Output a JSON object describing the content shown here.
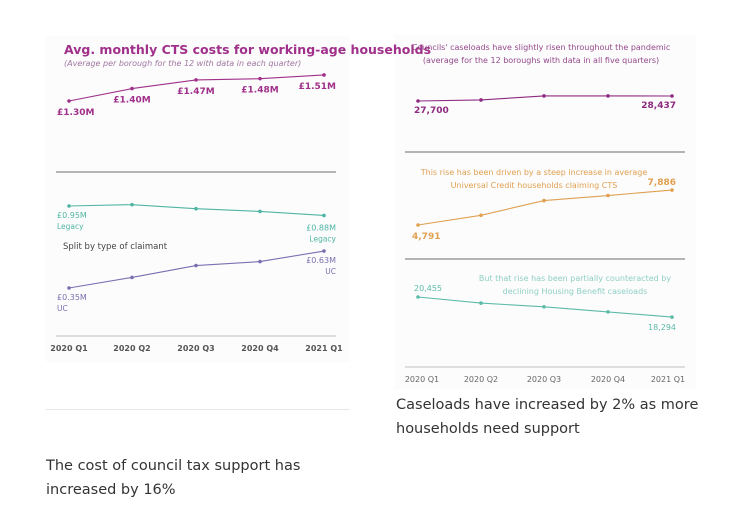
{
  "chart_data": [
    {
      "type": "line",
      "title": "Avg. monthly CTS costs for working-age households",
      "subtitle": "(Average per borough for the 12 with data in each quarter)",
      "annotation": "Split by type of claimant",
      "categories": [
        "2020 Q1",
        "2020 Q2",
        "2020 Q3",
        "2020 Q4",
        "2021 Q1"
      ],
      "series": [
        {
          "key": "total",
          "values": [
            1.3,
            1.4,
            1.47,
            1.48,
            1.51
          ],
          "labels": [
            "£1.30M",
            "£1.40M",
            "£1.47M",
            "£1.48M",
            "£1.51M"
          ],
          "color": "#a0308a"
        },
        {
          "key": "legacy",
          "name": "Legacy",
          "values": [
            0.95,
            0.96,
            0.93,
            0.91,
            0.88
          ],
          "labels": [
            "£0.95M",
            "",
            "",
            "",
            "£0.88M"
          ],
          "color": "#4fb5a3"
        },
        {
          "key": "uc",
          "name": "UC",
          "values": [
            0.35,
            0.43,
            0.52,
            0.55,
            0.63
          ],
          "labels": [
            "£0.35M",
            "",
            "",
            "",
            "£0.63M"
          ],
          "color": "#7a6fb0"
        }
      ],
      "grid": false
    },
    {
      "type": "line",
      "categories": [
        "2020 Q1",
        "2020 Q2",
        "2020 Q3",
        "2020 Q4",
        "2021 Q1"
      ],
      "series": [
        {
          "key": "caseload",
          "title": "Councils' caseloads have slightly risen throughout the pandemic",
          "subtitle": "(average for the 12 boroughs with data in all five quarters)",
          "values": [
            27700,
            27850,
            28450,
            28450,
            28437
          ],
          "labels": [
            "27,700",
            "",
            "",
            "",
            "28,437"
          ],
          "color": "#8e2a80"
        },
        {
          "key": "uc",
          "title": "This rise has been driven by a steep increase in average",
          "subtitle": "Universal Credit households claiming CTS",
          "values": [
            4791,
            5650,
            6950,
            7400,
            7886
          ],
          "labels": [
            "4,791",
            "",
            "",
            "",
            "7,886"
          ],
          "color": "#e0a050"
        },
        {
          "key": "hb",
          "title": "But that rise has been partially counteracted by",
          "subtitle": "declining Housing Benefit caseloads",
          "values": [
            20455,
            19800,
            19400,
            18850,
            18294
          ],
          "labels": [
            "20,455",
            "",
            "",
            "",
            "18,294"
          ],
          "color": "#5cbba8"
        }
      ],
      "grid": false
    }
  ],
  "captions": {
    "left": "The cost of council tax support has increased by 16%",
    "right": "Caseloads have increased by 2% as more households need support"
  }
}
